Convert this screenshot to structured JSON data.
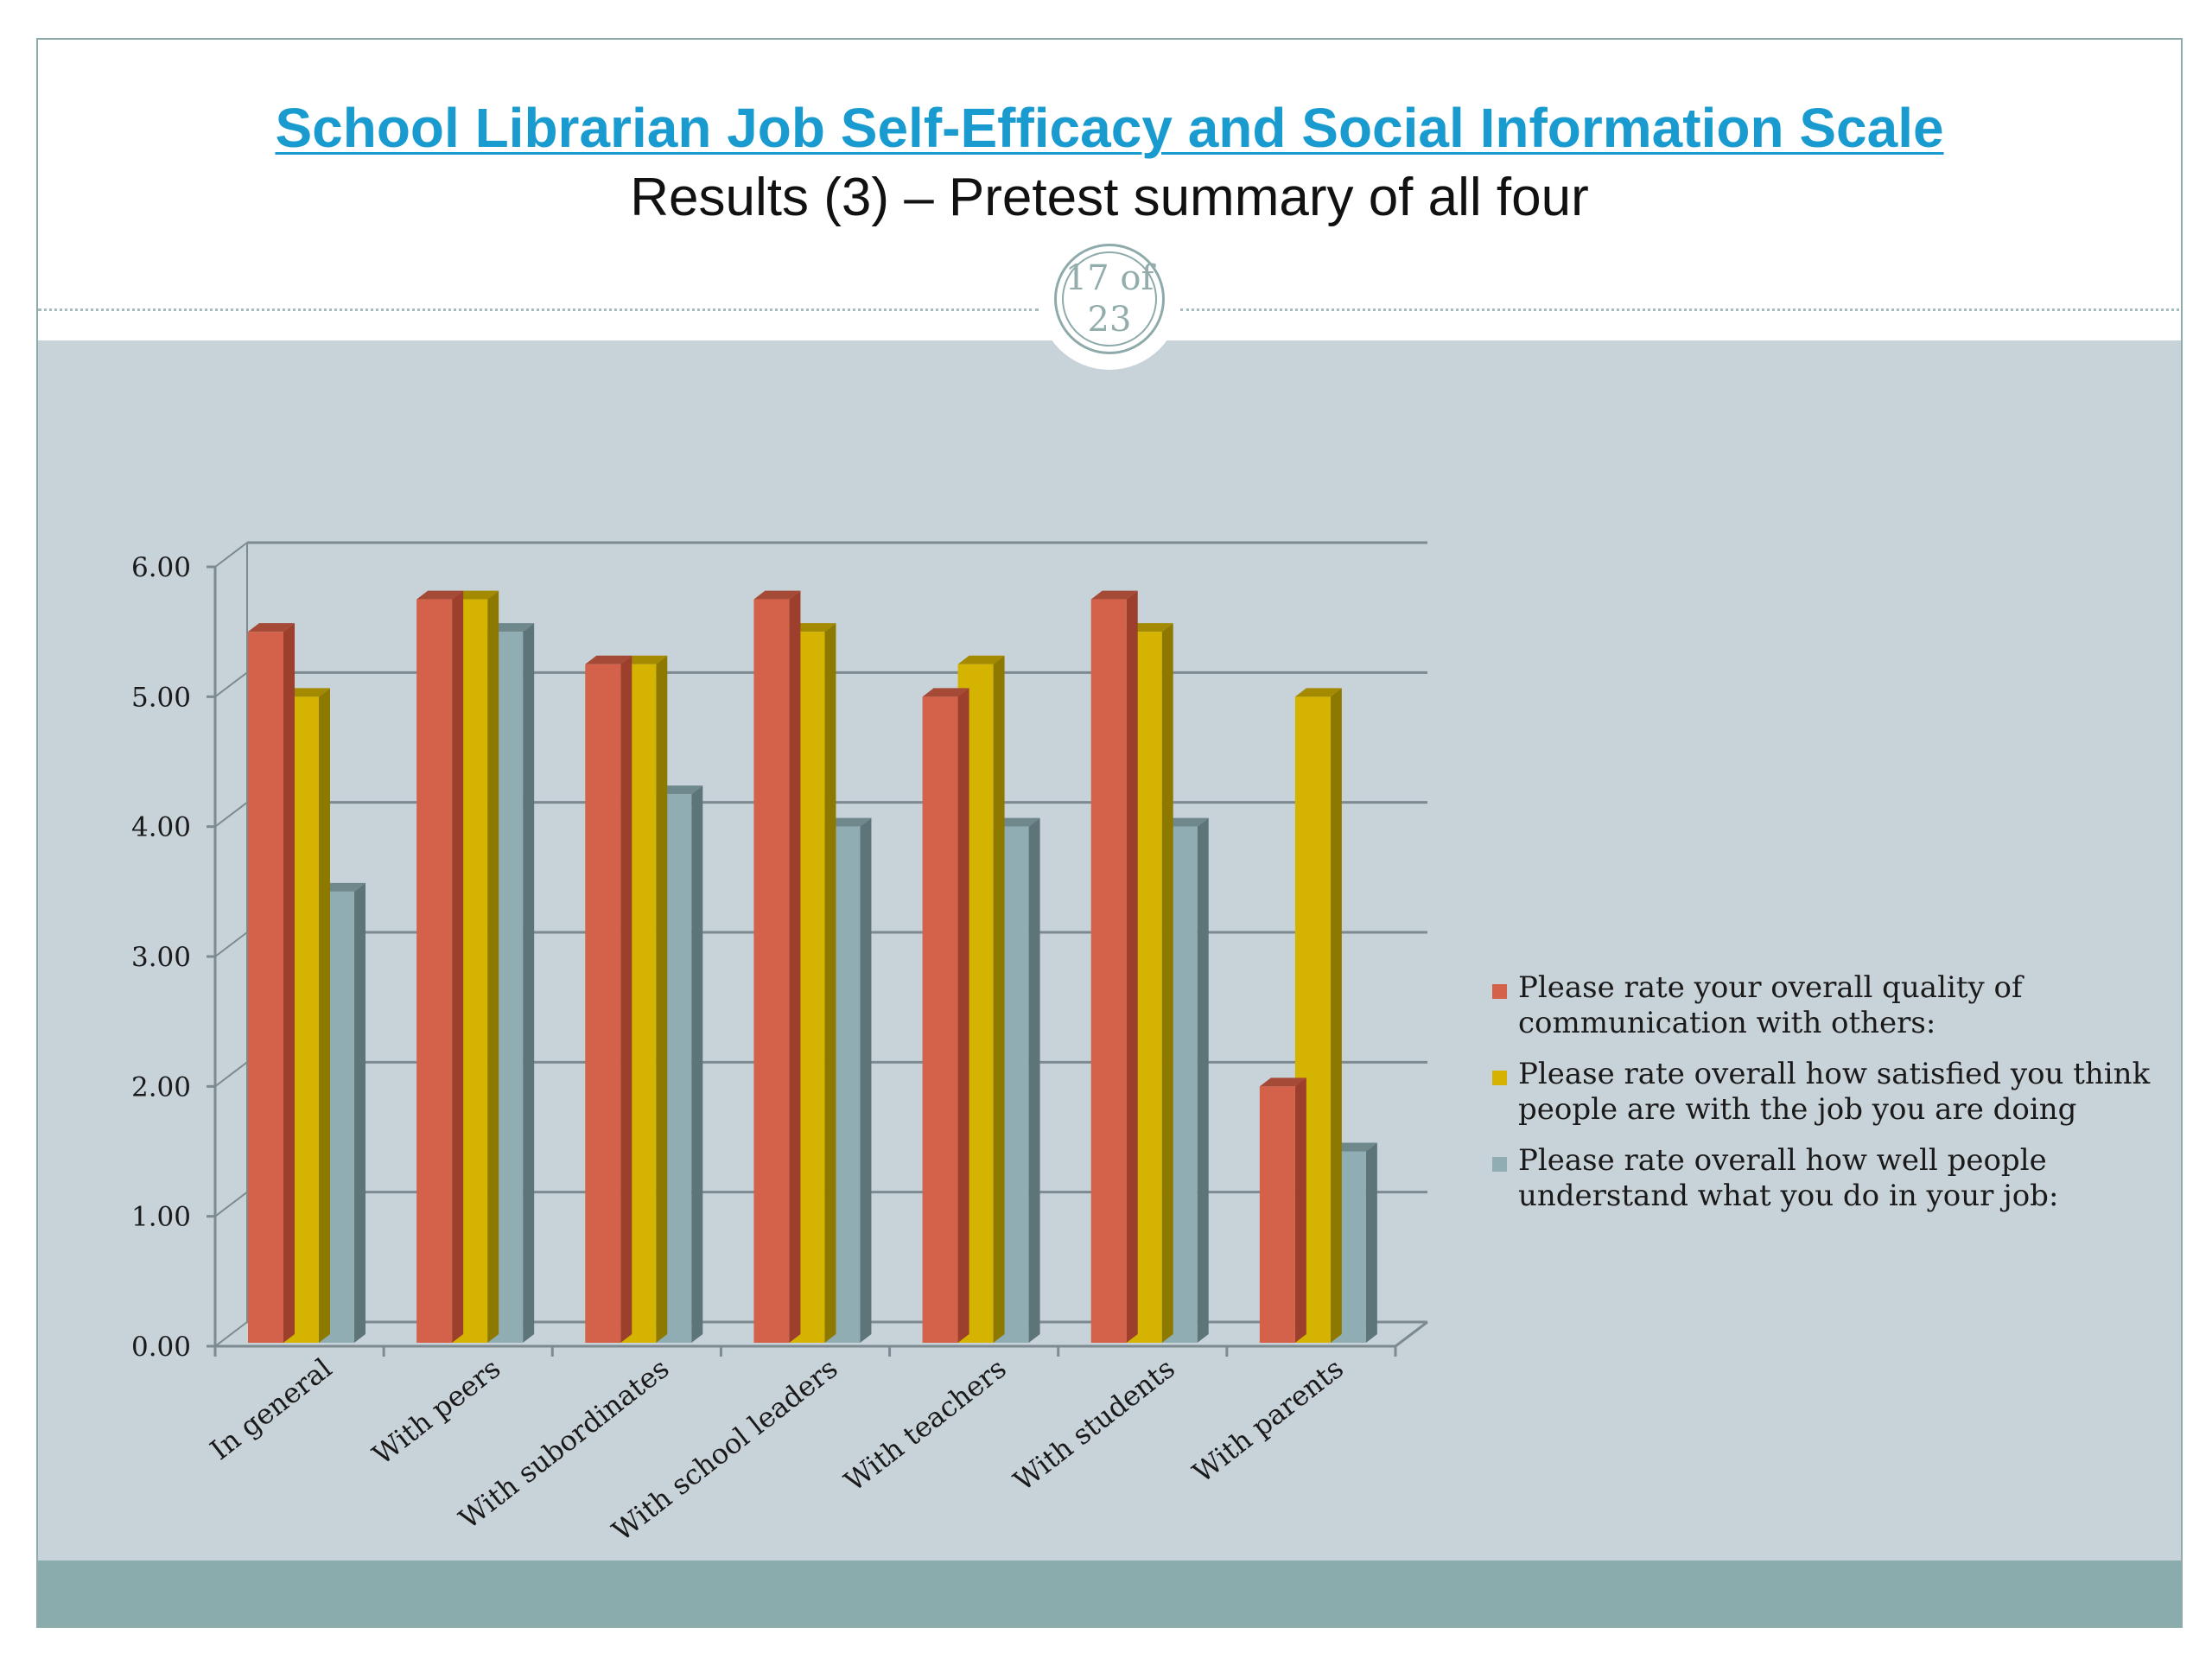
{
  "header": {
    "title": "School Librarian Job Self-Efficacy and Social Information Scale",
    "subtitle": "Results (3) – Pretest summary of all four",
    "page_indicator": "17 of 23"
  },
  "colors": {
    "title": "#1a9bd0",
    "background": "#c8d2d9",
    "footer": "#8aacac",
    "series": [
      "#d4624a",
      "#d4b400",
      "#8fadb2"
    ]
  },
  "chart_data": {
    "type": "bar",
    "style": "3d-clustered-column",
    "categories": [
      "In general",
      "With peers",
      "With subordinates",
      "With school leaders",
      "With teachers",
      "With students",
      "With parents"
    ],
    "series": [
      {
        "name": "Please rate your overall quality of communication with others:",
        "values": [
          5.5,
          5.75,
          5.25,
          5.75,
          5.0,
          5.75,
          2.0
        ]
      },
      {
        "name": "Please rate overall how satisfied you think people are with the job you are doing",
        "values": [
          5.0,
          5.75,
          5.25,
          5.5,
          5.25,
          5.5,
          5.0
        ]
      },
      {
        "name": "Please rate overall how well people understand what you do in your job:",
        "values": [
          3.5,
          5.5,
          4.25,
          4.0,
          4.0,
          4.0,
          1.5
        ]
      }
    ],
    "yticks": [
      "0.00",
      "1.00",
      "2.00",
      "3.00",
      "4.00",
      "5.00",
      "6.00"
    ],
    "ylim": [
      0,
      6
    ],
    "grid": true,
    "legend_position": "right",
    "xlabel": "",
    "ylabel": ""
  }
}
